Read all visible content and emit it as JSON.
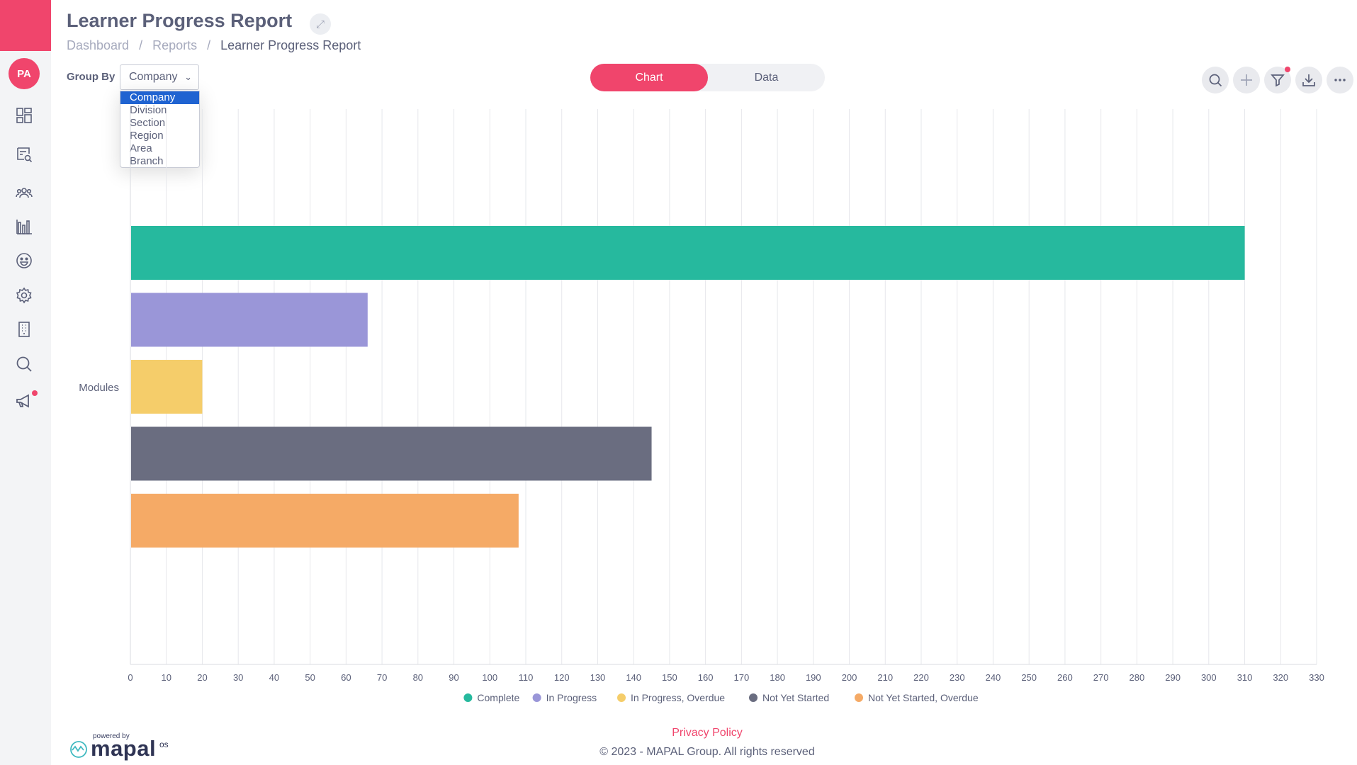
{
  "header": {
    "title": "Learner Progress Report",
    "breadcrumb": [
      "Dashboard",
      "Reports",
      "Learner Progress Report"
    ]
  },
  "sidebar": {
    "avatar": "PA",
    "items": [
      "dashboard-icon",
      "report-search-icon",
      "users-icon",
      "bar-chart-icon",
      "smiley-icon",
      "gear-icon",
      "building-icon",
      "search-icon",
      "megaphone-icon"
    ]
  },
  "group_by": {
    "label": "Group By",
    "selected": "Company",
    "options": [
      "Company",
      "Division",
      "Section",
      "Region",
      "Area",
      "Branch"
    ]
  },
  "view_toggle": {
    "chart": "Chart",
    "data": "Data"
  },
  "toolbar": [
    "search-icon",
    "plus-icon",
    "filter-icon",
    "download-icon",
    "more-icon"
  ],
  "colors": {
    "accent": "#f0456c",
    "complete": "#26b99e",
    "in_progress": "#9a96d8",
    "in_progress_overdue": "#f5cd6a",
    "not_yet_started": "#6a6d80",
    "not_yet_started_overdue": "#f5aa66"
  },
  "chart_data": {
    "type": "bar",
    "orientation": "horizontal",
    "categories": [
      "Modules"
    ],
    "series": [
      {
        "name": "Complete",
        "values": [
          310
        ],
        "color": "#26b99e"
      },
      {
        "name": "In Progress",
        "values": [
          66
        ],
        "color": "#9a96d8"
      },
      {
        "name": "In Progress, Overdue",
        "values": [
          20
        ],
        "color": "#f5cd6a"
      },
      {
        "name": "Not Yet Started",
        "values": [
          145
        ],
        "color": "#6a6d80"
      },
      {
        "name": "Not Yet Started, Overdue",
        "values": [
          108
        ],
        "color": "#f5aa66"
      }
    ],
    "xlim": [
      0,
      330
    ],
    "xticks": [
      0,
      10,
      20,
      30,
      40,
      50,
      60,
      70,
      80,
      90,
      100,
      110,
      120,
      130,
      140,
      150,
      160,
      170,
      180,
      190,
      200,
      210,
      220,
      230,
      240,
      250,
      260,
      270,
      280,
      290,
      300,
      310,
      320,
      330
    ],
    "grid": true,
    "legend": "bottom"
  },
  "footer": {
    "powered_by": "powered by",
    "brand": "mapal",
    "brand_suffix": "os",
    "privacy": "Privacy Policy",
    "copyright": "© 2023 - MAPAL Group. All rights reserved"
  }
}
